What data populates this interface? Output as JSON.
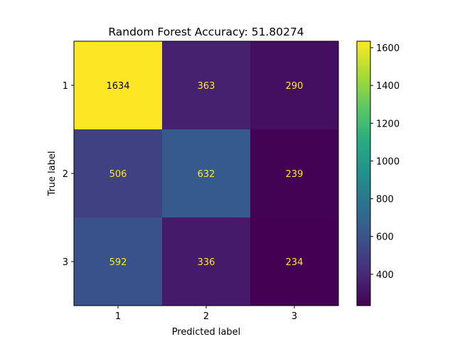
{
  "chart_data": {
    "type": "heatmap",
    "title": "Random Forest Accuracy: 51.80274",
    "xlabel": "Predicted label",
    "ylabel": "True label",
    "x_categories": [
      "1",
      "2",
      "3"
    ],
    "y_categories": [
      "1",
      "2",
      "3"
    ],
    "values": [
      [
        1634,
        363,
        290
      ],
      [
        506,
        632,
        239
      ],
      [
        592,
        336,
        234
      ]
    ],
    "colormap": "viridis",
    "colorbar": {
      "range": [
        234,
        1634
      ],
      "ticks": [
        400,
        600,
        800,
        1000,
        1200,
        1400,
        1600
      ]
    },
    "annotation_colors": {
      "light_cell": "#000000",
      "dark_cell": "#fde725"
    }
  }
}
